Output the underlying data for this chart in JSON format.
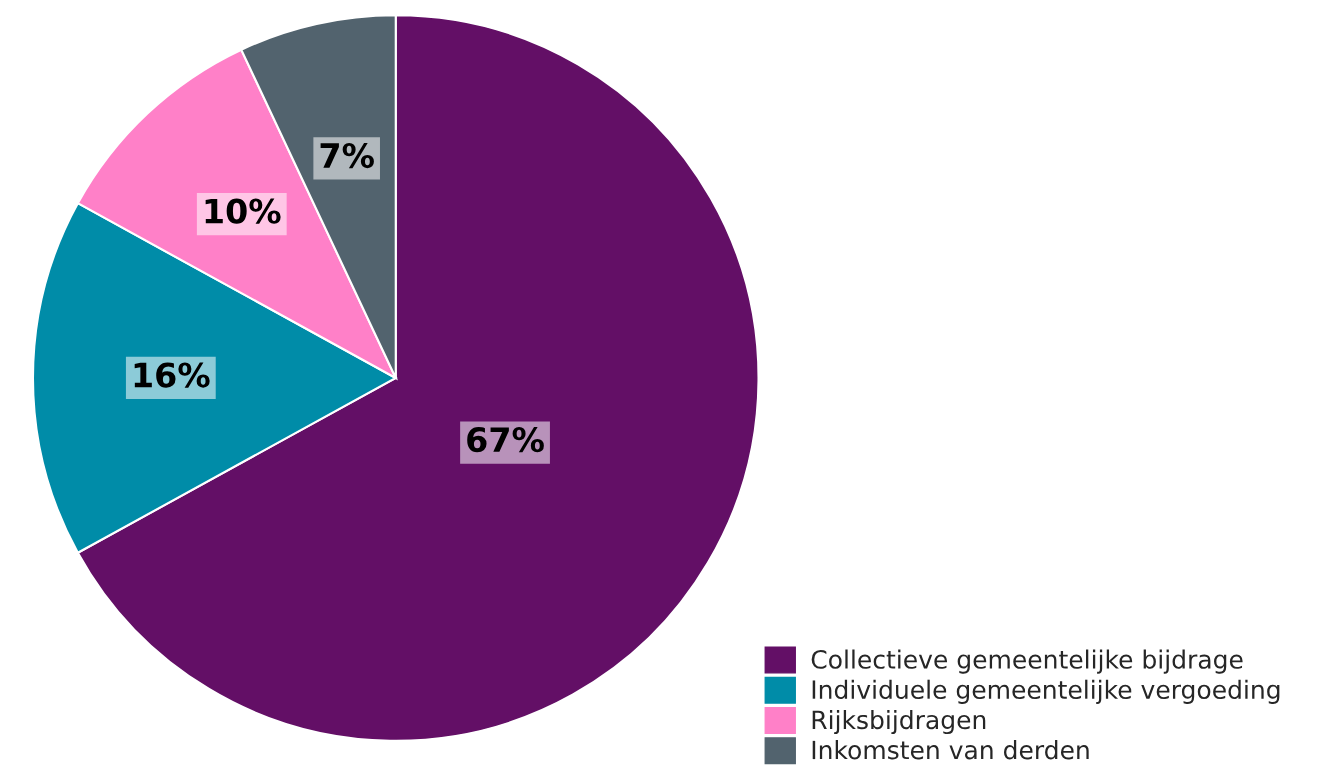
{
  "chart_data": {
    "type": "pie",
    "categories": [
      "Collectieve gemeentelijke bijdrage",
      "Individuele gemeentelijke vergoeding",
      "Rijksbijdragen",
      "Inkomsten van derden"
    ],
    "values": [
      67,
      16,
      10,
      7
    ],
    "value_labels": [
      "67%",
      "16%",
      "10%",
      "7%"
    ],
    "colors": [
      "#630f66",
      "#008ca8",
      "#ff80c8",
      "#52636e"
    ],
    "legend": "bottom right"
  }
}
